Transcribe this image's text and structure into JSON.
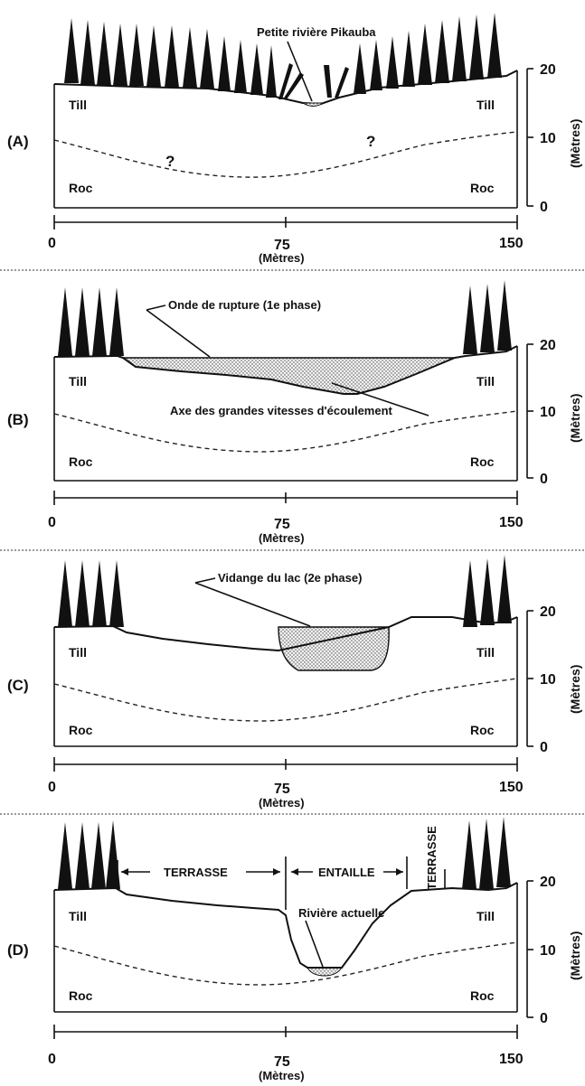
{
  "panels": [
    {
      "id": "A",
      "label": "(A)",
      "till_left": "Till",
      "till_right": "Till",
      "roc_left": "Roc",
      "roc_right": "Roc",
      "annotations": [
        "Petite rivière Pikauba",
        "?",
        "?"
      ]
    },
    {
      "id": "B",
      "label": "(B)",
      "till_left": "Till",
      "till_right": "Till",
      "roc_left": "Roc",
      "roc_right": "Roc",
      "annotations": [
        "Onde de rupture (1e phase)",
        "Axe des grandes vitesses d'écoulement"
      ]
    },
    {
      "id": "C",
      "label": "(C)",
      "till_left": "Till",
      "till_right": "Till",
      "roc_left": "Roc",
      "roc_right": "Roc",
      "annotations": [
        "Vidange du lac (2e phase)"
      ]
    },
    {
      "id": "D",
      "label": "(D)",
      "till_left": "Till",
      "till_right": "Till",
      "roc_left": "Roc",
      "roc_right": "Roc",
      "annotations": [
        "TERRASSE",
        "ENTAILLE",
        "TERRASSE",
        "Rivière actuelle"
      ]
    }
  ],
  "vertical_axis": {
    "ticks": [
      "20",
      "10",
      "0"
    ],
    "label": "(Mètres)"
  },
  "horizontal_axis": {
    "ticks": [
      "0",
      "75",
      "150"
    ],
    "label": "(Mètres)"
  }
}
